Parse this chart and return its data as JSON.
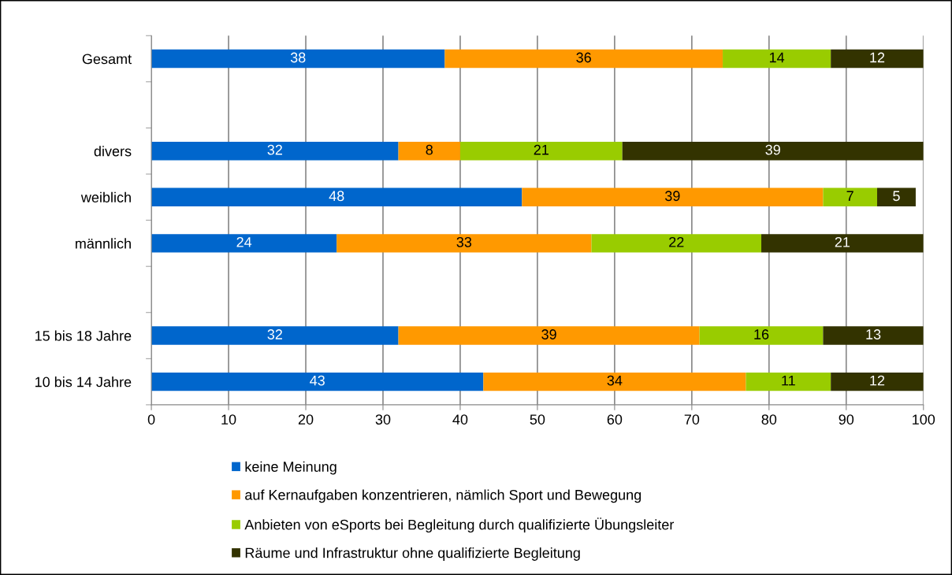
{
  "chart_data": {
    "type": "bar",
    "orientation": "horizontal",
    "stacked": true,
    "categories": [
      "Gesamt",
      null,
      "divers",
      "weiblich",
      "männlich",
      null,
      "15 bis 18 Jahre",
      "10 bis 14 Jahre"
    ],
    "series": [
      {
        "name": "keine Meinung",
        "color": "#0066cc",
        "values": [
          38,
          null,
          32,
          48,
          24,
          null,
          32,
          43
        ]
      },
      {
        "name": "auf Kernaufgaben konzentrieren, nämlich Sport und Bewegung",
        "color": "#ff9900",
        "values": [
          36,
          null,
          8,
          39,
          33,
          null,
          39,
          34
        ]
      },
      {
        "name": "Anbieten von eSports bei Begleitung durch qualifizierte Übungsleiter",
        "color": "#99cc00",
        "values": [
          14,
          null,
          21,
          7,
          22,
          null,
          16,
          11
        ]
      },
      {
        "name": "Räume und Infrastruktur ohne qualifizierte Begleitung",
        "color": "#333300",
        "values": [
          12,
          null,
          39,
          5,
          21,
          null,
          13,
          12
        ]
      }
    ],
    "xlim": [
      0,
      100
    ],
    "xticks": [
      0,
      10,
      20,
      30,
      40,
      50,
      60,
      70,
      80,
      90,
      100
    ],
    "grid": "x",
    "legend": "bottom",
    "data_labels": true
  }
}
